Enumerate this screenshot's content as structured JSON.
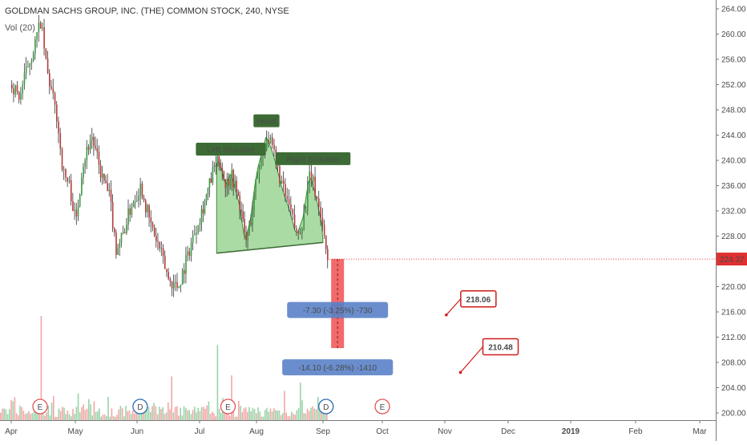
{
  "header": {
    "symbol_title": "GOLDMAN SACHS GROUP, INC. (THE) COMMON STOCK, 240, NYSE",
    "volume_label": "Vol (20)"
  },
  "chart_data": {
    "type": "candlestick",
    "symbol": "GOLDMAN SACHS GROUP, INC. (THE) COMMON STOCK",
    "interval": "240",
    "exchange": "NYSE",
    "y_range": [
      197,
      265
    ],
    "y_ticks": [
      "264.00",
      "260.00",
      "256.00",
      "252.00",
      "248.00",
      "244.00",
      "240.00",
      "236.00",
      "232.00",
      "228.00",
      "224.00",
      "220.00",
      "216.00",
      "212.00",
      "208.00",
      "204.00",
      "200.00"
    ],
    "x_ticks": [
      "Apr",
      "May",
      "Jun",
      "Jul",
      "Aug",
      "Sep",
      "Oct",
      "Nov",
      "Dec",
      "2019",
      "Feb",
      "Mar"
    ],
    "last_price": "224.37",
    "price_path": [
      {
        "t": 0.0,
        "p": 252
      },
      {
        "t": 0.12,
        "p": 250
      },
      {
        "t": 0.25,
        "p": 255
      },
      {
        "t": 0.35,
        "p": 258
      },
      {
        "t": 0.45,
        "p": 262
      },
      {
        "t": 0.55,
        "p": 254
      },
      {
        "t": 0.7,
        "p": 247
      },
      {
        "t": 0.8,
        "p": 238
      },
      {
        "t": 0.9,
        "p": 236
      },
      {
        "t": 1.0,
        "p": 230
      },
      {
        "t": 1.1,
        "p": 239
      },
      {
        "t": 1.25,
        "p": 244
      },
      {
        "t": 1.4,
        "p": 238
      },
      {
        "t": 1.55,
        "p": 234
      },
      {
        "t": 1.65,
        "p": 226
      },
      {
        "t": 1.75,
        "p": 228
      },
      {
        "t": 1.9,
        "p": 233
      },
      {
        "t": 2.05,
        "p": 236
      },
      {
        "t": 2.2,
        "p": 230
      },
      {
        "t": 2.35,
        "p": 226
      },
      {
        "t": 2.5,
        "p": 221
      },
      {
        "t": 2.65,
        "p": 220
      },
      {
        "t": 2.8,
        "p": 225
      },
      {
        "t": 2.95,
        "p": 230
      },
      {
        "t": 3.1,
        "p": 234
      },
      {
        "t": 3.25,
        "p": 239
      },
      {
        "t": 3.35,
        "p": 240
      },
      {
        "t": 3.45,
        "p": 236
      },
      {
        "t": 3.55,
        "p": 238
      },
      {
        "t": 3.7,
        "p": 233
      },
      {
        "t": 3.8,
        "p": 227
      },
      {
        "t": 3.9,
        "p": 231
      },
      {
        "t": 4.0,
        "p": 238
      },
      {
        "t": 4.15,
        "p": 244
      },
      {
        "t": 4.25,
        "p": 241
      },
      {
        "t": 4.4,
        "p": 235
      },
      {
        "t": 4.5,
        "p": 232
      },
      {
        "t": 4.6,
        "p": 228
      },
      {
        "t": 4.7,
        "p": 231
      },
      {
        "t": 4.8,
        "p": 238
      },
      {
        "t": 4.9,
        "p": 234
      },
      {
        "t": 5.0,
        "p": 229
      },
      {
        "t": 5.07,
        "p": 224.4
      }
    ],
    "volume_spikes": [
      {
        "t": 0.45,
        "v": 1.0
      },
      {
        "t": 2.55,
        "v": 0.42
      },
      {
        "t": 3.3,
        "v": 0.72
      },
      {
        "t": 3.55,
        "v": 0.43
      },
      {
        "t": 4.4,
        "v": 0.28
      },
      {
        "t": 4.65,
        "v": 0.36
      }
    ],
    "earnings_markers": [
      {
        "t": 0.45,
        "label": "E"
      },
      {
        "t": 3.5,
        "label": "E"
      },
      {
        "t": 6.0,
        "label": "E"
      }
    ],
    "dividend_markers": [
      {
        "t": 2.05,
        "label": "D"
      },
      {
        "t": 5.05,
        "label": "D"
      }
    ],
    "pattern": {
      "name": "Head and Shoulders",
      "neckline": [
        {
          "t": 3.3,
          "p": 225.3
        },
        {
          "t": 5.0,
          "p": 227
        }
      ],
      "left_shoulder": {
        "t": 3.55,
        "p": 240,
        "label": "Left Shoulder"
      },
      "head": {
        "t": 4.15,
        "p": 244.5,
        "label": "Head"
      },
      "right_shoulder": {
        "t": 4.85,
        "p": 238.5,
        "label": "Right Shoulder"
      }
    },
    "projection": {
      "top": 224.37,
      "target_1": 217.07,
      "target_2": 210.27,
      "label_1": "-7.30 (-3.25%) -730",
      "label_2": "-14.10 (-6.28%) -1410"
    },
    "callouts": [
      {
        "label": "218.06",
        "t": 7.15,
        "p": 218.06
      },
      {
        "label": "210.48",
        "t": 7.5,
        "p": 210.48
      }
    ]
  }
}
